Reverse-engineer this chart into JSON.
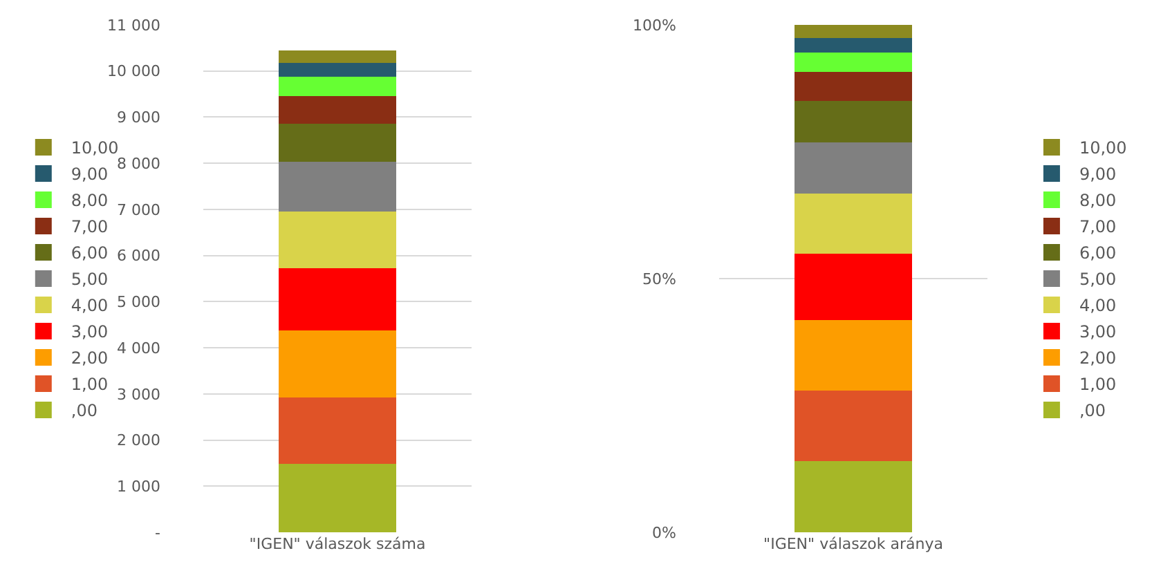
{
  "chart_data": [
    {
      "type": "bar",
      "stacked": true,
      "categories": [
        "\"IGEN\" válaszok száma"
      ],
      "ylim": [
        0,
        11000
      ],
      "yticks": [
        {
          "value": 0,
          "label": "-"
        },
        {
          "value": 1000,
          "label": "1 000"
        },
        {
          "value": 2000,
          "label": "2 000"
        },
        {
          "value": 3000,
          "label": "3 000"
        },
        {
          "value": 4000,
          "label": "4 000"
        },
        {
          "value": 5000,
          "label": "5 000"
        },
        {
          "value": 6000,
          "label": "6 000"
        },
        {
          "value": 7000,
          "label": "7 000"
        },
        {
          "value": 8000,
          "label": "8 000"
        },
        {
          "value": 9000,
          "label": "9 000"
        },
        {
          "value": 10000,
          "label": "10 000"
        },
        {
          "value": 11000,
          "label": "11 000"
        }
      ],
      "grid": "y",
      "legend": "left",
      "series": [
        {
          "name": ",00",
          "color": "#a6b727",
          "values": [
            1490
          ]
        },
        {
          "name": "1,00",
          "color": "#e05327",
          "values": [
            1430
          ]
        },
        {
          "name": "2,00",
          "color": "#fd9d00",
          "values": [
            1450
          ]
        },
        {
          "name": "3,00",
          "color": "#ff0000",
          "values": [
            1360
          ]
        },
        {
          "name": "4,00",
          "color": "#d9d34a",
          "values": [
            1230
          ]
        },
        {
          "name": "5,00",
          "color": "#808080",
          "values": [
            1070
          ]
        },
        {
          "name": "6,00",
          "color": "#656d18",
          "values": [
            830
          ]
        },
        {
          "name": "7,00",
          "color": "#8a2e14",
          "values": [
            600
          ]
        },
        {
          "name": "8,00",
          "color": "#66ff33",
          "values": [
            410
          ]
        },
        {
          "name": "9,00",
          "color": "#265a6e",
          "values": [
            300
          ]
        },
        {
          "name": "10,00",
          "color": "#8c8a20",
          "values": [
            270
          ]
        }
      ]
    },
    {
      "type": "bar",
      "stacked": true,
      "categories": [
        "\"IGEN\" válaszok aránya"
      ],
      "ylim": [
        0,
        100
      ],
      "yticks": [
        {
          "value": 0,
          "label": "0%"
        },
        {
          "value": 50,
          "label": "50%"
        },
        {
          "value": 100,
          "label": "100%"
        }
      ],
      "grid": "y",
      "legend": "right",
      "series": [
        {
          "name": ",00",
          "color": "#a6b727",
          "values": [
            14.1
          ]
        },
        {
          "name": "1,00",
          "color": "#e05327",
          "values": [
            13.8
          ]
        },
        {
          "name": "2,00",
          "color": "#fd9d00",
          "values": [
            13.9
          ]
        },
        {
          "name": "3,00",
          "color": "#ff0000",
          "values": [
            13.1
          ]
        },
        {
          "name": "4,00",
          "color": "#d9d34a",
          "values": [
            11.9
          ]
        },
        {
          "name": "5,00",
          "color": "#808080",
          "values": [
            10.1
          ]
        },
        {
          "name": "6,00",
          "color": "#656d18",
          "values": [
            8.1
          ]
        },
        {
          "name": "7,00",
          "color": "#8a2e14",
          "values": [
            5.8
          ]
        },
        {
          "name": "8,00",
          "color": "#66ff33",
          "values": [
            3.8
          ]
        },
        {
          "name": "9,00",
          "color": "#265a6e",
          "values": [
            2.8
          ]
        },
        {
          "name": "10,00",
          "color": "#8c8a20",
          "values": [
            2.6
          ]
        }
      ]
    }
  ]
}
